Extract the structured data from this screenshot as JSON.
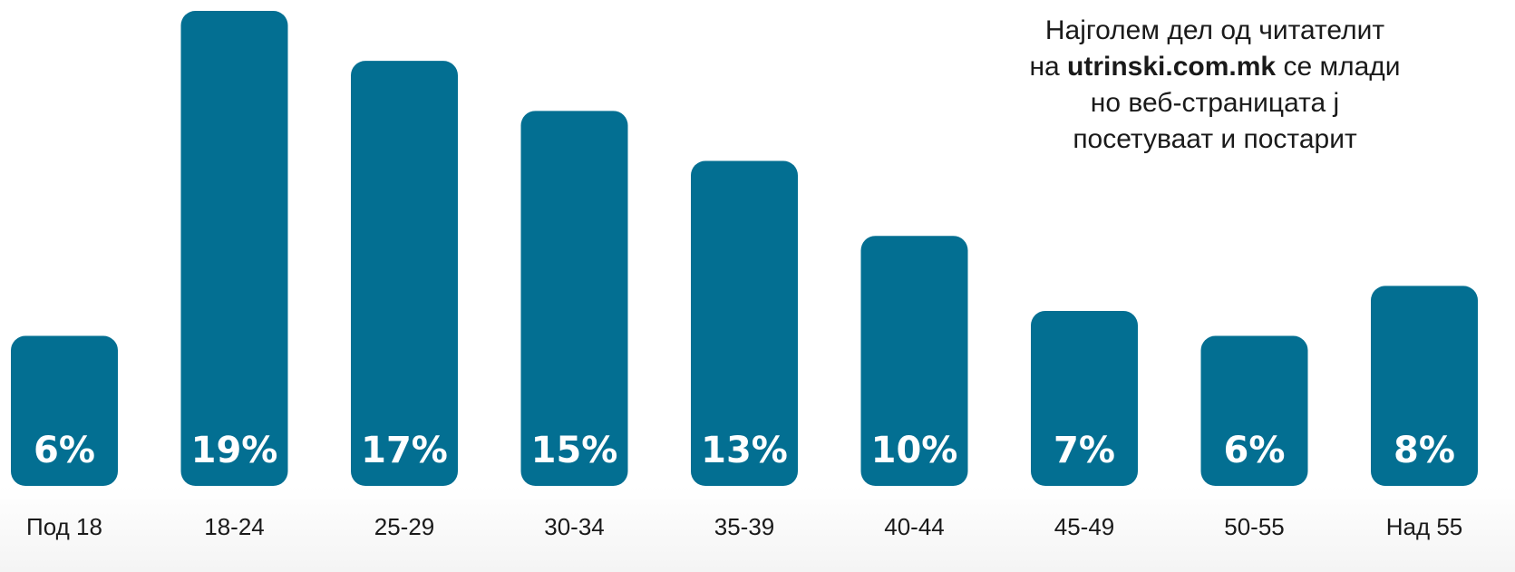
{
  "annotation": {
    "line1": "Најголем дел од читателит",
    "line2_prefix": "на ",
    "line2_bold": "utrinski.com.mk",
    "line2_suffix": " се млади",
    "line3": "но веб-страницата ј",
    "line4": "посетуваат и постарит"
  },
  "colors": {
    "bar": "#036f92",
    "value_text": "#ffffff",
    "tick_text": "#1a1a1a"
  },
  "chart_data": {
    "type": "bar",
    "title": "",
    "xlabel": "",
    "ylabel": "",
    "ylim": [
      0,
      19
    ],
    "categories": [
      "Под 18",
      "18-24",
      "25-29",
      "30-34",
      "35-39",
      "40-44",
      "45-49",
      "50-55",
      "Над 55"
    ],
    "values": [
      6,
      19,
      17,
      15,
      13,
      10,
      7,
      6,
      8
    ],
    "value_labels": [
      "6%",
      "19%",
      "17%",
      "15%",
      "13%",
      "10%",
      "7%",
      "6%",
      "8%"
    ],
    "grid": false,
    "legend": "none"
  }
}
